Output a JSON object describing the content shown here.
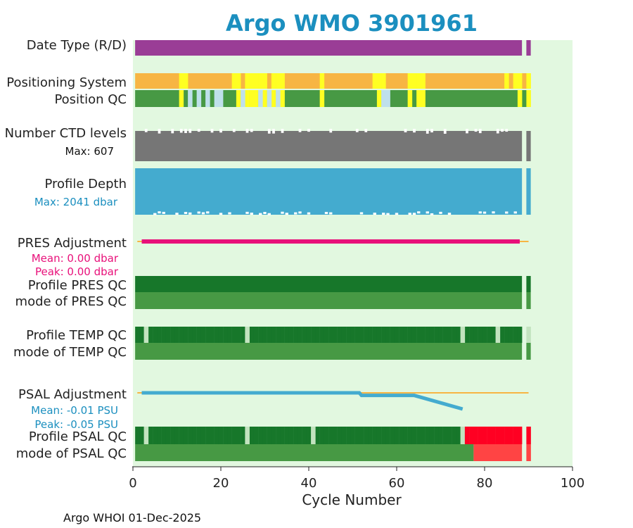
{
  "chart_data": {
    "type": "status-timeline",
    "title": "Argo WMO 3901961",
    "xlabel": "Cycle Number",
    "xlim": [
      0,
      100
    ],
    "xticks": [
      0,
      20,
      40,
      60,
      80,
      100
    ],
    "last_cycle": 90,
    "footer": "Argo WHOI 01-Dec-2025",
    "colors": {
      "title": "#1b8fbf",
      "plot_bg": "#e2f8e0",
      "date_type": "#9a3d96",
      "positioning_gps": "#f7b543",
      "positioning_alt": "#ffff22",
      "qc_good": "#479944",
      "qc_interp": "#ffff22",
      "qc_missing": "#bfe0eb",
      "ctd": "#767676",
      "depth": "#44abcf",
      "pres_line": "#e8107a",
      "ref_line": "#f7b543",
      "psal_line": "#44abcf",
      "profile_a": "#17772a",
      "profile_b": "#c3e3bf",
      "qc_bad": "#ff0022",
      "qc_bad_mode": "#ff4444",
      "stats_depth": "#1b8fbf",
      "stats_pres": "#e8107a",
      "stats_psal": "#1b8fbf"
    },
    "rows": {
      "date_type": {
        "label": "Date Type (R/D)",
        "value": "R",
        "cycles": [
          1,
          90
        ],
        "gap": [
          89
        ]
      },
      "positioning_system": {
        "label": "Positioning System",
        "base": "GPS",
        "alt_cycles": [
          11,
          12,
          23,
          24,
          26,
          27,
          28,
          29,
          30,
          32,
          33,
          34,
          43,
          55,
          56,
          57,
          63,
          64,
          65,
          66,
          85,
          87,
          88,
          90
        ]
      },
      "position_qc": {
        "label": "Position QC",
        "base": "1",
        "interp_cycles": [
          11,
          24,
          26,
          27,
          28,
          30,
          32,
          34,
          43,
          56,
          63,
          65,
          66,
          88,
          90
        ],
        "missing_cycles": [
          13,
          15,
          17,
          19,
          20,
          25,
          29,
          31,
          33,
          57,
          58
        ]
      },
      "number_ctd_levels": {
        "label": "Number CTD levels",
        "max": "Max: 607",
        "cycles": [
          1,
          90
        ],
        "gap": [
          89
        ]
      },
      "profile_depth": {
        "label": "Profile Depth",
        "max": "Max: 2041 dbar",
        "cycles": [
          1,
          90
        ],
        "gap": [
          89
        ]
      },
      "pres_adjustment": {
        "label": "PRES Adjustment",
        "mean": "Mean: 0.00 dbar",
        "peak": "Peak: 0.00 dbar",
        "cycles": [
          2,
          88
        ],
        "ref_range": [
          1,
          90
        ],
        "values": [
          [
            2,
            0
          ],
          [
            88,
            0
          ]
        ]
      },
      "profile_pres_qc": {
        "label": "Profile PRES QC",
        "grade": "A",
        "cycles": [
          1,
          90
        ],
        "gap": [
          89
        ]
      },
      "mode_pres_qc": {
        "label": "mode of PRES QC",
        "value": "1",
        "cycles": [
          1,
          90
        ],
        "gap": [
          89
        ]
      },
      "profile_temp_qc": {
        "label": "Profile TEMP QC",
        "grade_a_cycles": [
          1,
          2,
          4,
          5,
          6,
          7,
          8,
          9,
          10,
          11,
          12,
          13,
          14,
          15,
          16,
          17,
          18,
          19,
          20,
          21,
          22,
          23,
          24,
          25,
          27,
          28,
          29,
          30,
          31,
          32,
          33,
          34,
          35,
          36,
          37,
          38,
          39,
          40,
          41,
          42,
          43,
          44,
          45,
          46,
          47,
          48,
          49,
          50,
          51,
          52,
          53,
          54,
          55,
          56,
          57,
          58,
          59,
          60,
          61,
          62,
          63,
          64,
          65,
          66,
          67,
          68,
          69,
          70,
          71,
          72,
          73,
          74,
          76,
          77,
          78,
          79,
          80,
          81,
          82,
          84,
          85,
          86,
          87,
          88
        ],
        "grade_b_cycles": [
          3,
          26,
          75,
          83,
          90
        ]
      },
      "mode_temp_qc": {
        "label": "mode of TEMP QC",
        "value": "1",
        "cycles": [
          1,
          90
        ],
        "gap": [
          89
        ]
      },
      "psal_adjustment": {
        "label": "PSAL Adjustment",
        "mean": "Mean: -0.01 PSU",
        "peak": "Peak: -0.05 PSU",
        "ref_range": [
          1,
          90
        ],
        "values": [
          [
            2,
            0
          ],
          [
            51.5,
            0
          ],
          [
            52,
            -0.008
          ],
          [
            64,
            -0.008
          ],
          [
            75,
            -0.05
          ]
        ],
        "ylim": [
          -0.05,
          0
        ]
      },
      "profile_psal_qc": {
        "label": "Profile PSAL QC",
        "grade_a_cycles": [
          1,
          2,
          4,
          5,
          6,
          7,
          8,
          9,
          10,
          11,
          12,
          13,
          14,
          15,
          16,
          17,
          18,
          19,
          20,
          21,
          22,
          23,
          24,
          25,
          27,
          28,
          29,
          30,
          31,
          32,
          33,
          34,
          35,
          36,
          37,
          38,
          39,
          40,
          42,
          43,
          44,
          45,
          46,
          47,
          48,
          49,
          50,
          51,
          52,
          53,
          54,
          55,
          56,
          57,
          58,
          59,
          60,
          61,
          62,
          63,
          64,
          65,
          66,
          67,
          68,
          69,
          70,
          71,
          72,
          73,
          74
        ],
        "grade_b_cycles": [
          3,
          26,
          41,
          75
        ],
        "grade_f_cycles": [
          76,
          77,
          78,
          79,
          80,
          81,
          82,
          83,
          84,
          85,
          86,
          87,
          88,
          90
        ]
      },
      "mode_psal_qc": {
        "label": "mode of PSAL QC",
        "good_cycles": [
          1,
          77
        ],
        "bad_cycles": [
          78,
          88
        ],
        "bad_last": [
          90
        ]
      }
    }
  }
}
